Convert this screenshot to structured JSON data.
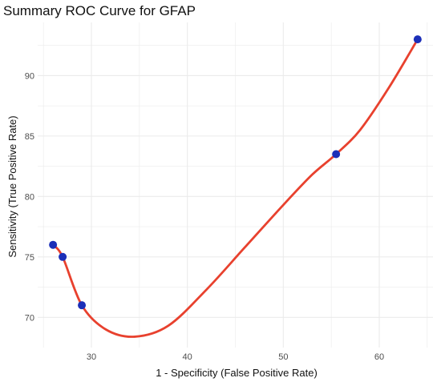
{
  "chart_data": {
    "type": "line",
    "title": "Summary ROC Curve for GFAP",
    "xlabel": "1 - Specificity (False Positive Rate)",
    "ylabel": "Sensitivity (True Positive Rate)",
    "xlim": [
      24.4,
      65.6
    ],
    "ylim": [
      67.5,
      94.4
    ],
    "x_ticks": [
      30,
      40,
      50,
      60
    ],
    "y_ticks": [
      70,
      75,
      80,
      85,
      90
    ],
    "grid": true,
    "series": [
      {
        "points": [
          {
            "x": 26,
            "y": 76
          },
          {
            "x": 27,
            "y": 75
          },
          {
            "x": 29,
            "y": 71
          },
          {
            "x": 55.5,
            "y": 83.5
          },
          {
            "x": 64,
            "y": 93
          }
        ],
        "curve": [
          {
            "x": 26,
            "y": 76
          },
          {
            "x": 27,
            "y": 75
          },
          {
            "x": 29,
            "y": 71
          },
          {
            "x": 31.5,
            "y": 69
          },
          {
            "x": 34.5,
            "y": 68.4
          },
          {
            "x": 38,
            "y": 69.3
          },
          {
            "x": 42,
            "y": 72.3
          },
          {
            "x": 46,
            "y": 75.8
          },
          {
            "x": 50,
            "y": 79.3
          },
          {
            "x": 53,
            "y": 81.8
          },
          {
            "x": 55.5,
            "y": 83.5
          },
          {
            "x": 58,
            "y": 85.5
          },
          {
            "x": 61,
            "y": 89
          },
          {
            "x": 64,
            "y": 93
          }
        ]
      }
    ],
    "colors": {
      "curve": "#e8412e",
      "point": "#1c2fb8",
      "grid": "#ebebeb",
      "text": "#111111",
      "tick": "#4d4d4d"
    }
  }
}
